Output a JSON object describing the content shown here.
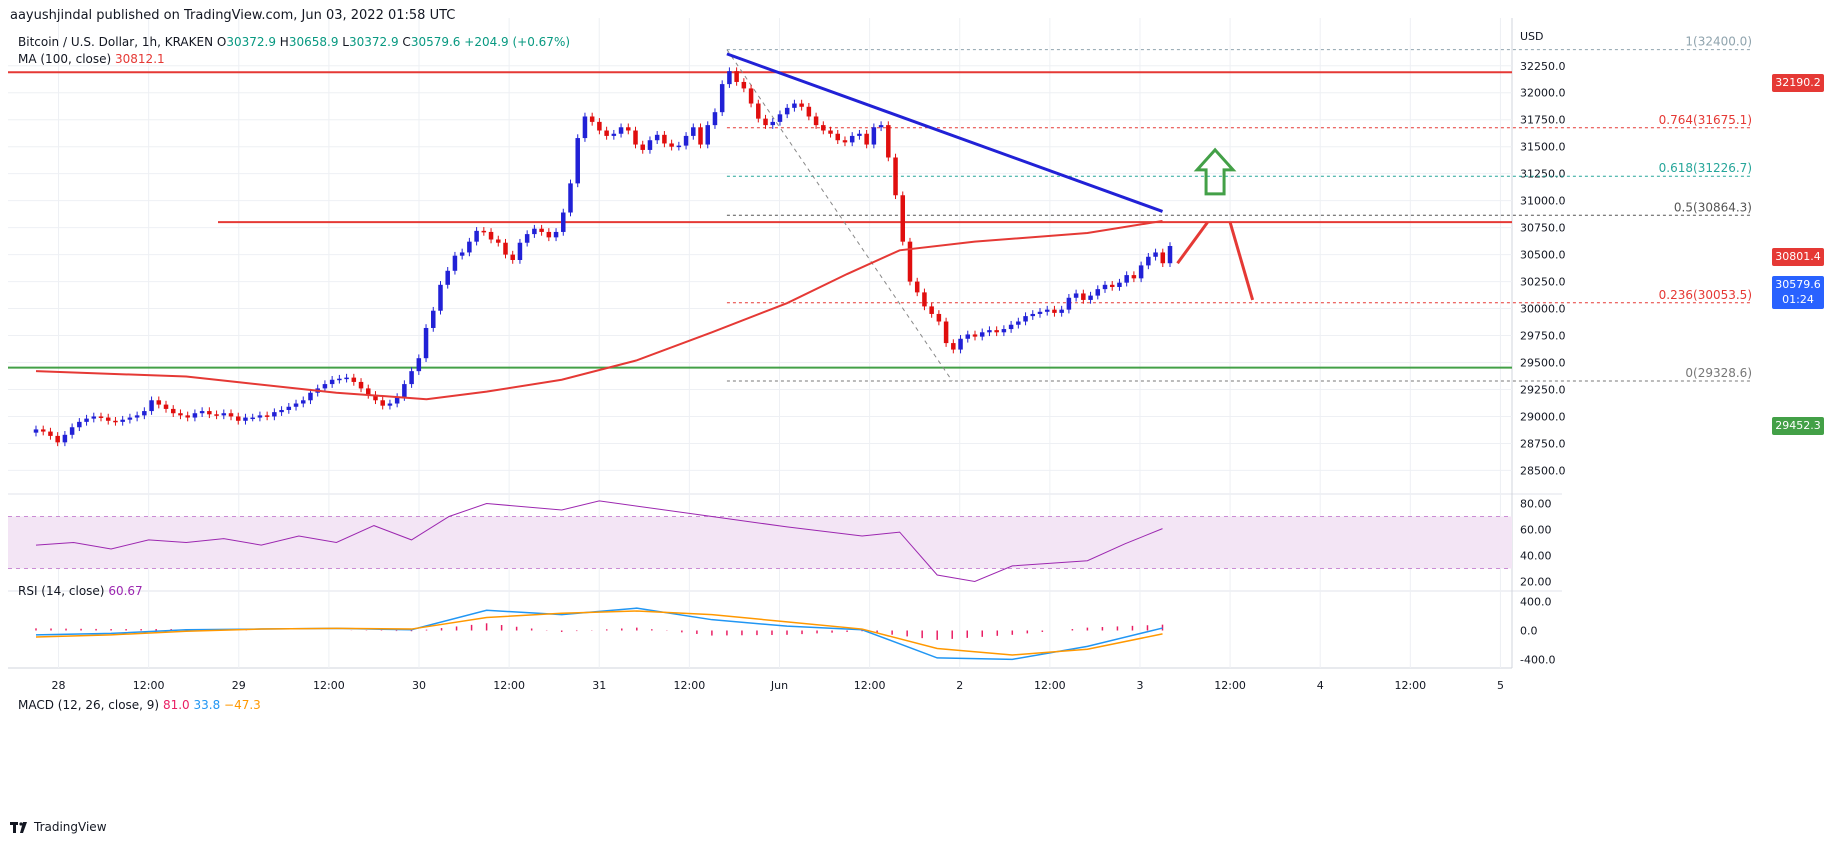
{
  "header": {
    "published": "aayushjindal published on TradingView.com, Jun 03, 2022 01:58 UTC"
  },
  "legend": {
    "symbol": "Bitcoin / U.S. Dollar, 1h, KRAKEN",
    "o_label": "O",
    "open": "30372.9",
    "h_label": "H",
    "high": "30658.9",
    "l_label": "L",
    "low": "30372.9",
    "c_label": "C",
    "close": "30579.6",
    "change": "+204.9 (+0.67%)",
    "ma_label": "MA (100, close)",
    "ma_value": "30812.1",
    "rsi_label": "RSI (14, close)",
    "rsi_value": "60.67",
    "macd_label": "MACD (12, 26, close, 9)",
    "macd_v1": "81.0",
    "macd_v2": "33.8",
    "macd_v3": "−47.3"
  },
  "tags": {
    "resistance": "32190.2",
    "ma": "30801.4",
    "last": "30579.6",
    "countdown": "01:24",
    "support": "29452.3"
  },
  "footer": {
    "brand": "TradingView"
  },
  "colors": {
    "up": "#2121d6",
    "down": "#e00e0e",
    "ma": "#e53935",
    "trend": "#2121d6",
    "support": "#43a047",
    "resistance": "#e53935",
    "rsi": "#9c27b0",
    "macd": "#2196f3",
    "signal": "#ff9800",
    "hist": "#e91e63",
    "arrow_up": "#43a047",
    "arrow_down": "#e53935"
  },
  "chart_data": {
    "type": "candlestick",
    "title": "Bitcoin / U.S. Dollar, 1h, KRAKEN",
    "currency_label": "USD",
    "price_ylim": [
      28300,
      32600
    ],
    "price_ticks": [
      "28500.0",
      "28750.0",
      "29000.0",
      "29250.0",
      "29500.0",
      "29750.0",
      "30000.0",
      "30250.0",
      "30500.0",
      "30750.0",
      "31000.0",
      "31250.0",
      "31500.0",
      "31750.0",
      "32000.0",
      "32250.0"
    ],
    "time_ticks": [
      {
        "label": "28",
        "t": 3
      },
      {
        "label": "12:00",
        "t": 15
      },
      {
        "label": "29",
        "t": 27
      },
      {
        "label": "12:00",
        "t": 39
      },
      {
        "label": "30",
        "t": 51
      },
      {
        "label": "12:00",
        "t": 63
      },
      {
        "label": "31",
        "t": 75
      },
      {
        "label": "12:00",
        "t": 87
      },
      {
        "label": "Jun",
        "t": 99
      },
      {
        "label": "12:00",
        "t": 111
      },
      {
        "label": "2",
        "t": 123
      },
      {
        "label": "12:00",
        "t": 135
      },
      {
        "label": "3",
        "t": 147
      },
      {
        "label": "12:00",
        "t": 159
      },
      {
        "label": "4",
        "t": 171
      },
      {
        "label": "12:00",
        "t": 183
      },
      {
        "label": "5",
        "t": 195
      }
    ],
    "time_range": [
      0,
      200
    ],
    "close_series": [
      28880,
      28860,
      28820,
      28760,
      28830,
      28900,
      28950,
      28980,
      29000,
      28990,
      28960,
      28950,
      28970,
      28990,
      29010,
      29050,
      29150,
      29110,
      29070,
      29030,
      29010,
      28990,
      29030,
      29050,
      29020,
      29010,
      29030,
      29000,
      28960,
      28990,
      28990,
      29010,
      29000,
      29040,
      29060,
      29090,
      29120,
      29150,
      29220,
      29260,
      29300,
      29340,
      29350,
      29360,
      29320,
      29260,
      29200,
      29150,
      29100,
      29120,
      29180,
      29300,
      29420,
      29540,
      29820,
      29980,
      30220,
      30350,
      30490,
      30520,
      30620,
      30720,
      30710,
      30640,
      30610,
      30500,
      30450,
      30610,
      30690,
      30740,
      30710,
      30660,
      30710,
      30890,
      31160,
      31580,
      31780,
      31730,
      31650,
      31600,
      31620,
      31680,
      31650,
      31520,
      31470,
      31560,
      31610,
      31530,
      31500,
      31510,
      31600,
      31680,
      31520,
      31700,
      31820,
      32080,
      32200,
      32100,
      32040,
      31900,
      31760,
      31700,
      31730,
      31800,
      31860,
      31900,
      31870,
      31780,
      31700,
      31650,
      31620,
      31560,
      31540,
      31600,
      31620,
      31520,
      31680,
      31700,
      31400,
      31050,
      30620,
      30250,
      30150,
      30020,
      29950,
      29880,
      29680,
      29620,
      29720,
      29760,
      29740,
      29780,
      29800,
      29780,
      29810,
      29850,
      29880,
      29930,
      29950,
      29970,
      29990,
      29960,
      29990,
      30100,
      30140,
      30080,
      30120,
      30180,
      30220,
      30200,
      30240,
      30310,
      30280,
      30400,
      30480,
      30520,
      30420,
      30579.6
    ],
    "ohlc_last": {
      "open": 30372.9,
      "high": 30658.9,
      "low": 30372.9,
      "close": 30579.6,
      "change": 204.9,
      "change_pct": 0.67
    },
    "moving_average": {
      "label": "MA (100, close)",
      "start": [
        0,
        29420
      ],
      "points": [
        [
          0,
          29420
        ],
        [
          20,
          29370
        ],
        [
          40,
          29220
        ],
        [
          52,
          29160
        ],
        [
          60,
          29230
        ],
        [
          70,
          29340
        ],
        [
          80,
          29520
        ],
        [
          90,
          29780
        ],
        [
          100,
          30050
        ],
        [
          108,
          30320
        ],
        [
          115,
          30540
        ],
        [
          125,
          30620
        ],
        [
          140,
          30700
        ],
        [
          150,
          30812.1
        ]
      ]
    },
    "trendline": {
      "from": [
        92,
        32360
      ],
      "to": [
        150,
        30900
      ],
      "label": "descending trendline"
    },
    "horizontal_levels": [
      {
        "name": "resistance",
        "value": 32190.2,
        "color": "#e53935"
      },
      {
        "name": "pivot",
        "value": 30801.4,
        "color": "#e53935"
      },
      {
        "name": "support",
        "value": 29452.3,
        "color": "#43a047"
      }
    ],
    "fibonacci": {
      "from": [
        92,
        32400.0
      ],
      "to": [
        122,
        29328.6
      ],
      "levels": [
        {
          "ratio": "1",
          "value": 32400.0,
          "label": "1(32400.0)",
          "color": "#90a4ae"
        },
        {
          "ratio": "0.764",
          "value": 31675.1,
          "label": "0.764(31675.1)",
          "color": "#e53935"
        },
        {
          "ratio": "0.618",
          "value": 31226.7,
          "label": "0.618(31226.7)",
          "color": "#26a69a"
        },
        {
          "ratio": "0.5",
          "value": 30864.3,
          "label": "0.5(30864.3)",
          "color": "#555555"
        },
        {
          "ratio": "0.236",
          "value": 30053.5,
          "label": "0.236(30053.5)",
          "color": "#e53935"
        },
        {
          "ratio": "0",
          "value": 29328.6,
          "label": "0(29328.6)",
          "color": "#777777"
        }
      ]
    },
    "arrows": [
      {
        "type": "up",
        "at": [
          157,
          31230
        ]
      },
      {
        "type": "path",
        "points": [
          [
            152,
            30420
          ],
          [
            156,
            30800
          ],
          [
            159,
            30800
          ],
          [
            162,
            30080
          ]
        ]
      }
    ],
    "rsi": {
      "label": "RSI (14, close)",
      "value": 60.67,
      "ylim": [
        15,
        85
      ],
      "band": [
        30,
        70
      ],
      "ticks": [
        "20.00",
        "40.00",
        "60.00",
        "80.00"
      ],
      "series": [
        [
          0,
          48
        ],
        [
          5,
          50
        ],
        [
          10,
          45
        ],
        [
          15,
          52
        ],
        [
          20,
          50
        ],
        [
          25,
          53
        ],
        [
          30,
          48
        ],
        [
          35,
          55
        ],
        [
          40,
          50
        ],
        [
          45,
          63
        ],
        [
          50,
          52
        ],
        [
          55,
          70
        ],
        [
          60,
          80
        ],
        [
          70,
          75
        ],
        [
          75,
          82
        ],
        [
          80,
          78
        ],
        [
          90,
          70
        ],
        [
          100,
          62
        ],
        [
          110,
          55
        ],
        [
          115,
          58
        ],
        [
          120,
          25
        ],
        [
          125,
          20
        ],
        [
          130,
          32
        ],
        [
          140,
          36
        ],
        [
          145,
          49
        ],
        [
          150,
          60.67
        ]
      ]
    },
    "macd": {
      "label": "MACD (12, 26, close, 9)",
      "hist": 81.0,
      "macd": 33.8,
      "signal": -47.3,
      "ylim": [
        -520,
        520
      ],
      "ticks": [
        "400.0",
        "0.0",
        "-400.0"
      ],
      "macd_series": [
        [
          0,
          -60
        ],
        [
          10,
          -40
        ],
        [
          20,
          10
        ],
        [
          30,
          20
        ],
        [
          40,
          30
        ],
        [
          50,
          10
        ],
        [
          60,
          280
        ],
        [
          70,
          220
        ],
        [
          80,
          310
        ],
        [
          90,
          150
        ],
        [
          100,
          60
        ],
        [
          110,
          10
        ],
        [
          120,
          -380
        ],
        [
          130,
          -400
        ],
        [
          140,
          -220
        ],
        [
          150,
          33.8
        ]
      ],
      "signal_series": [
        [
          0,
          -90
        ],
        [
          10,
          -60
        ],
        [
          20,
          -10
        ],
        [
          30,
          20
        ],
        [
          40,
          30
        ],
        [
          50,
          20
        ],
        [
          60,
          180
        ],
        [
          70,
          240
        ],
        [
          80,
          270
        ],
        [
          90,
          220
        ],
        [
          100,
          120
        ],
        [
          110,
          20
        ],
        [
          120,
          -250
        ],
        [
          130,
          -340
        ],
        [
          140,
          -260
        ],
        [
          150,
          -47.3
        ]
      ]
    }
  }
}
